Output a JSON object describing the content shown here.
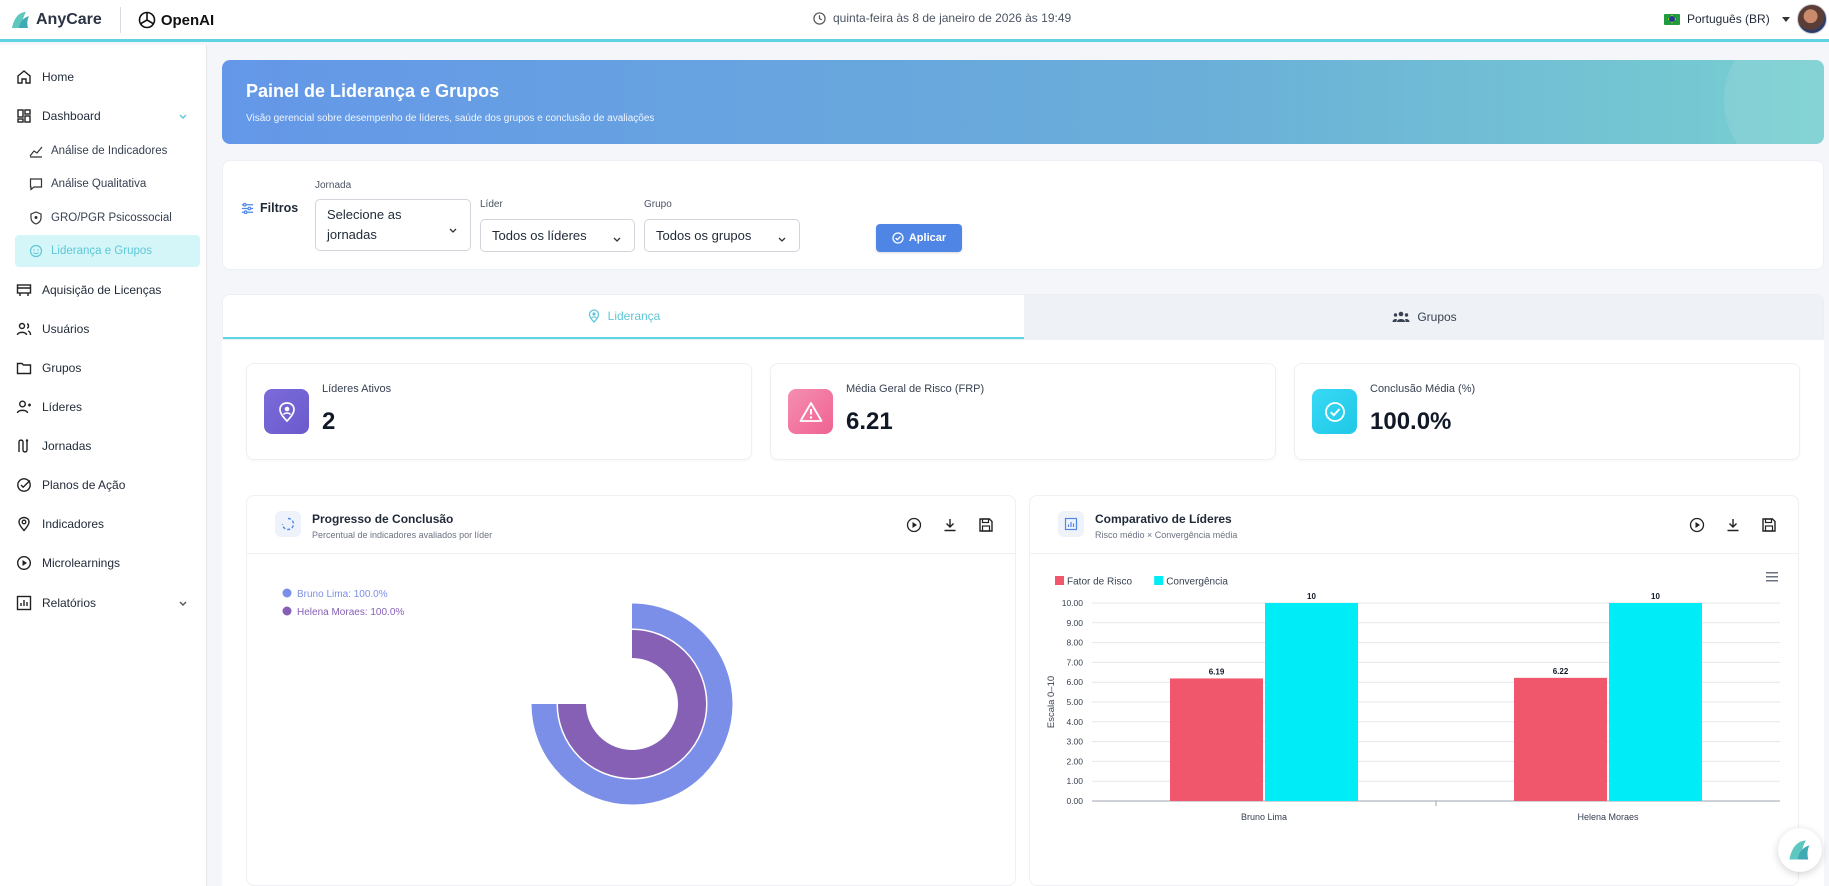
{
  "topbar": {
    "brand_name": "AnyCare",
    "partner_name": "OpenAI",
    "datetime": "quinta-feira às 8 de janeiro de 2026 às 19:49",
    "language": "Português (BR)"
  },
  "sidebar": {
    "items": [
      {
        "label": "Home",
        "icon": "home-icon"
      },
      {
        "label": "Dashboard",
        "icon": "dashboard-icon",
        "expanded": true
      },
      {
        "label": "Aquisição de Licenças",
        "icon": "license-icon"
      },
      {
        "label": "Usuários",
        "icon": "users-icon"
      },
      {
        "label": "Grupos",
        "icon": "folder-icon"
      },
      {
        "label": "Líderes",
        "icon": "leader-icon"
      },
      {
        "label": "Jornadas",
        "icon": "journey-icon"
      },
      {
        "label": "Planos de Ação",
        "icon": "check-circle-icon"
      },
      {
        "label": "Indicadores",
        "icon": "location-icon"
      },
      {
        "label": "Microlearnings",
        "icon": "play-icon"
      },
      {
        "label": "Relatórios",
        "icon": "report-icon"
      }
    ],
    "dashboard_sub": [
      {
        "label": "Análise de Indicadores",
        "icon": "chart-line-icon"
      },
      {
        "label": "Análise Qualitativa",
        "icon": "comment-icon"
      },
      {
        "label": "GRO/PGR Psicossocial",
        "icon": "shield-icon"
      },
      {
        "label": "Liderança e Grupos",
        "icon": "smile-icon",
        "active": true
      }
    ]
  },
  "hero": {
    "title": "Painel de Liderança e Grupos",
    "subtitle": "Visão gerencial sobre desempenho de líderes, saúde dos grupos e conclusão de avaliações"
  },
  "filters": {
    "title": "Filtros",
    "jornada": {
      "label": "Jornada",
      "value_line1": "Selecione as",
      "value_line2": "jornadas"
    },
    "lider": {
      "label": "Líder",
      "value": "Todos os líderes"
    },
    "grupo": {
      "label": "Grupo",
      "value": "Todos os grupos"
    },
    "apply_label": "Aplicar"
  },
  "tabs": [
    {
      "label": "Liderança",
      "active": true
    },
    {
      "label": "Grupos",
      "active": false
    }
  ],
  "kpis": [
    {
      "label": "Líderes Ativos",
      "value": "2",
      "color": "#7b6cd9"
    },
    {
      "label": "Média Geral de Risco (FRP)",
      "value": "6.21",
      "color": "#f0668f"
    },
    {
      "label": "Conclusão Média (%)",
      "value": "100.0%",
      "color": "#22d3ee"
    }
  ],
  "progress_panel": {
    "title": "Progresso de Conclusão",
    "subtitle": "Percentual de indicadores avaliados por líder"
  },
  "comparison_panel": {
    "title": "Comparativo de Líderes",
    "subtitle": "Risco médio × Convergência média"
  },
  "chart_data": [
    {
      "type": "radialBar",
      "series": [
        {
          "name": "Bruno Lima",
          "value": 100.0,
          "label": "Bruno Lima: 100.0%",
          "color": "#7b8fe8"
        },
        {
          "name": "Helena Moraes",
          "value": 100.0,
          "label": "Helena Moraes: 100.0%",
          "color": "#8660b5"
        }
      ]
    },
    {
      "type": "bar",
      "categories": [
        "Bruno Lima",
        "Helena Moraes"
      ],
      "series": [
        {
          "name": "Fator de Risco",
          "values": [
            6.19,
            6.22
          ],
          "labels": [
            "6.19",
            "6.22"
          ],
          "color": "#f0566c"
        },
        {
          "name": "Convergência",
          "values": [
            10,
            10
          ],
          "labels": [
            "10",
            "10"
          ],
          "color": "#00ecf7"
        }
      ],
      "ylabel": "Escala 0–10",
      "ylim": [
        0,
        10
      ],
      "yticks": [
        "0.00",
        "1.00",
        "2.00",
        "3.00",
        "4.00",
        "5.00",
        "6.00",
        "7.00",
        "8.00",
        "9.00",
        "10.00"
      ],
      "legend": "top-left",
      "grid": true
    }
  ]
}
